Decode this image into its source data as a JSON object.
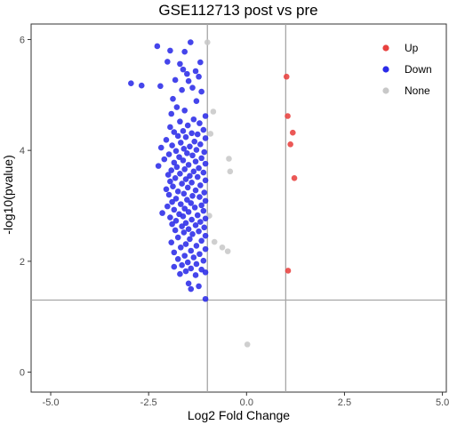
{
  "chart_data": {
    "type": "scatter",
    "title": "GSE112713 post vs pre",
    "xlabel": "Log2 Fold Change",
    "ylabel": "-log10(pvalue)",
    "xlim": [
      -5.5,
      5.1
    ],
    "ylim": [
      -0.36,
      6.28
    ],
    "xticks": [
      -5.0,
      -2.5,
      0.0,
      2.5,
      5.0
    ],
    "xtick_labels": [
      "-5.0",
      "-2.5",
      "0.0",
      "2.5",
      "5.0"
    ],
    "yticks": [
      0,
      2,
      4,
      6
    ],
    "ytick_labels": [
      "0",
      "2",
      "4",
      "6"
    ],
    "threshold_lines": {
      "x": [
        -1,
        1
      ],
      "y": 1.3
    },
    "grid": false,
    "legend_position": "top-right",
    "colors": {
      "Up": "#e8413f",
      "Down": "#2b2be8",
      "None": "#c8c8c8",
      "frame": "#333333",
      "threshold": "#a6a6a6"
    },
    "series": [
      {
        "name": "Up",
        "points": [
          [
            1.02,
            5.33
          ],
          [
            1.05,
            4.62
          ],
          [
            1.18,
            4.32
          ],
          [
            1.12,
            4.11
          ],
          [
            1.22,
            3.5
          ],
          [
            1.06,
            1.83
          ]
        ]
      },
      {
        "name": "Down",
        "points": [
          [
            -1.43,
            5.95
          ],
          [
            -2.28,
            5.88
          ],
          [
            -1.95,
            5.8
          ],
          [
            -1.58,
            5.78
          ],
          [
            -2.02,
            5.6
          ],
          [
            -1.18,
            5.59
          ],
          [
            -1.7,
            5.56
          ],
          [
            -1.62,
            5.46
          ],
          [
            -1.3,
            5.43
          ],
          [
            -1.52,
            5.38
          ],
          [
            -1.22,
            5.33
          ],
          [
            -1.82,
            5.27
          ],
          [
            -1.48,
            5.25
          ],
          [
            -2.95,
            5.21
          ],
          [
            -2.68,
            5.17
          ],
          [
            -2.2,
            5.16
          ],
          [
            -1.38,
            5.13
          ],
          [
            -1.65,
            5.09
          ],
          [
            -1.15,
            5.06
          ],
          [
            -1.88,
            4.93
          ],
          [
            -1.28,
            4.89
          ],
          [
            -1.78,
            4.78
          ],
          [
            -1.58,
            4.72
          ],
          [
            -1.92,
            4.66
          ],
          [
            -1.05,
            4.62
          ],
          [
            -1.35,
            4.56
          ],
          [
            -1.7,
            4.52
          ],
          [
            -1.2,
            4.49
          ],
          [
            -1.5,
            4.45
          ],
          [
            -1.95,
            4.42
          ],
          [
            -1.1,
            4.37
          ],
          [
            -1.62,
            4.35
          ],
          [
            -1.85,
            4.33
          ],
          [
            -1.4,
            4.31
          ],
          [
            -1.25,
            4.29
          ],
          [
            -1.75,
            4.26
          ],
          [
            -1.55,
            4.24
          ],
          [
            -1.05,
            4.22
          ],
          [
            -2.05,
            4.19
          ],
          [
            -1.33,
            4.16
          ],
          [
            -1.68,
            4.14
          ],
          [
            -1.18,
            4.11
          ],
          [
            -1.9,
            4.09
          ],
          [
            -1.45,
            4.07
          ],
          [
            -2.18,
            4.05
          ],
          [
            -1.6,
            4.03
          ],
          [
            -1.28,
            4.01
          ],
          [
            -1.8,
            3.99
          ],
          [
            -1.08,
            3.97
          ],
          [
            -1.52,
            3.95
          ],
          [
            -1.98,
            3.93
          ],
          [
            -1.38,
            3.91
          ],
          [
            -1.72,
            3.88
          ],
          [
            -1.15,
            3.86
          ],
          [
            -2.1,
            3.84
          ],
          [
            -1.62,
            3.82
          ],
          [
            -1.3,
            3.8
          ],
          [
            -1.85,
            3.78
          ],
          [
            -1.05,
            3.76
          ],
          [
            -1.48,
            3.74
          ],
          [
            -2.25,
            3.72
          ],
          [
            -1.78,
            3.7
          ],
          [
            -1.22,
            3.68
          ],
          [
            -1.58,
            3.66
          ],
          [
            -1.92,
            3.64
          ],
          [
            -1.35,
            3.62
          ],
          [
            -1.1,
            3.6
          ],
          [
            -1.7,
            3.58
          ],
          [
            -2.0,
            3.56
          ],
          [
            -1.45,
            3.54
          ],
          [
            -1.25,
            3.52
          ],
          [
            -1.82,
            3.5
          ],
          [
            -1.55,
            3.48
          ],
          [
            -1.05,
            3.46
          ],
          [
            -1.95,
            3.44
          ],
          [
            -1.4,
            3.42
          ],
          [
            -1.65,
            3.4
          ],
          [
            -1.18,
            3.37
          ],
          [
            -1.88,
            3.35
          ],
          [
            -1.5,
            3.33
          ],
          [
            -2.05,
            3.3
          ],
          [
            -1.3,
            3.28
          ],
          [
            -1.75,
            3.26
          ],
          [
            -1.08,
            3.24
          ],
          [
            -1.6,
            3.22
          ],
          [
            -1.98,
            3.2
          ],
          [
            -1.38,
            3.18
          ],
          [
            -1.2,
            3.16
          ],
          [
            -1.8,
            3.13
          ],
          [
            -1.52,
            3.11
          ],
          [
            -1.05,
            3.09
          ],
          [
            -1.9,
            3.07
          ],
          [
            -1.42,
            3.05
          ],
          [
            -1.68,
            3.03
          ],
          [
            -1.15,
            3.01
          ],
          [
            -2.02,
            2.99
          ],
          [
            -1.32,
            2.97
          ],
          [
            -1.58,
            2.95
          ],
          [
            -1.85,
            2.93
          ],
          [
            -1.1,
            2.91
          ],
          [
            -1.48,
            2.89
          ],
          [
            -2.15,
            2.87
          ],
          [
            -1.72,
            2.85
          ],
          [
            -1.25,
            2.83
          ],
          [
            -1.62,
            2.81
          ],
          [
            -1.95,
            2.79
          ],
          [
            -1.05,
            2.77
          ],
          [
            -1.4,
            2.75
          ],
          [
            -1.8,
            2.73
          ],
          [
            -1.18,
            2.71
          ],
          [
            -1.55,
            2.69
          ],
          [
            -1.9,
            2.67
          ],
          [
            -1.3,
            2.65
          ],
          [
            -1.65,
            2.63
          ],
          [
            -1.08,
            2.61
          ],
          [
            -1.48,
            2.58
          ],
          [
            -1.82,
            2.56
          ],
          [
            -1.22,
            2.54
          ],
          [
            -1.6,
            2.52
          ],
          [
            -1.38,
            2.49
          ],
          [
            -1.05,
            2.46
          ],
          [
            -1.75,
            2.43
          ],
          [
            -1.45,
            2.4
          ],
          [
            -1.15,
            2.37
          ],
          [
            -1.92,
            2.34
          ],
          [
            -1.55,
            2.31
          ],
          [
            -1.28,
            2.28
          ],
          [
            -1.68,
            2.25
          ],
          [
            -1.05,
            2.22
          ],
          [
            -1.42,
            2.19
          ],
          [
            -1.85,
            2.16
          ],
          [
            -1.2,
            2.13
          ],
          [
            -1.58,
            2.1
          ],
          [
            -1.35,
            2.07
          ],
          [
            -1.75,
            2.04
          ],
          [
            -1.1,
            2.01
          ],
          [
            -1.5,
            1.98
          ],
          [
            -1.28,
            1.95
          ],
          [
            -1.65,
            1.93
          ],
          [
            -1.85,
            1.9
          ],
          [
            -1.42,
            1.87
          ],
          [
            -1.15,
            1.85
          ],
          [
            -1.55,
            1.82
          ],
          [
            -1.05,
            1.8
          ],
          [
            -1.7,
            1.77
          ],
          [
            -1.3,
            1.75
          ],
          [
            -1.48,
            1.6
          ],
          [
            -1.22,
            1.55
          ],
          [
            -1.42,
            1.5
          ],
          [
            -1.05,
            1.32
          ]
        ]
      },
      {
        "name": "None",
        "points": [
          [
            -1.0,
            5.95
          ],
          [
            -0.85,
            4.7
          ],
          [
            -0.92,
            4.3
          ],
          [
            -0.45,
            3.85
          ],
          [
            -0.42,
            3.62
          ],
          [
            -0.95,
            2.82
          ],
          [
            -0.82,
            2.35
          ],
          [
            -0.62,
            2.25
          ],
          [
            -0.48,
            2.18
          ],
          [
            0.02,
            0.5
          ]
        ]
      }
    ]
  }
}
